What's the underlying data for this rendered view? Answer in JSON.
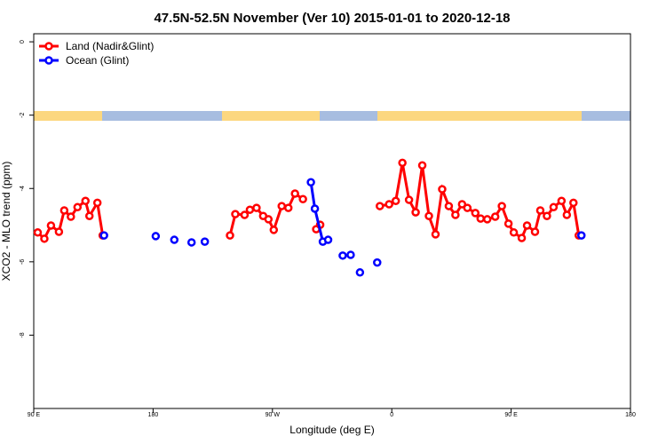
{
  "chart_data": {
    "type": "line",
    "title": "47.5N-52.5N November (Ver 10)   2015-01-01 to 2020-12-18",
    "x_label": "Longitude (deg E)",
    "y_label": "XCO2 - MLO trend (ppm)",
    "xlim": [
      90,
      540
    ],
    "ylim": [
      -10,
      0.22
    ],
    "xticks": [
      {
        "value": 90,
        "label": "90 E"
      },
      180,
      {
        "value": 270,
        "label": "90 W"
      },
      {
        "value": 360,
        "label": "0"
      },
      {
        "value": 450,
        "label": "90 E"
      },
      {
        "value": 540,
        "label": "180"
      }
    ],
    "yticks": [
      0,
      -2,
      -4,
      -6,
      -8
    ],
    "legend": "top-left",
    "series": [
      {
        "name": "Land (Nadir&Glint)",
        "color": "#ff0000",
        "x": [
          93,
          98,
          103,
          109,
          113,
          118,
          123,
          129,
          132,
          138,
          142,
          null,
          238,
          242,
          249,
          253,
          258,
          263,
          267,
          271,
          277,
          282,
          287,
          293,
          null,
          303,
          306,
          null,
          351,
          358,
          363,
          368,
          373,
          378,
          383,
          388,
          393,
          398,
          403,
          408,
          413,
          417,
          423,
          427,
          432,
          438,
          443,
          448,
          452,
          458,
          462,
          468,
          472,
          477,
          482,
          488,
          492,
          497,
          501
        ],
        "values": [
          -5.2,
          -5.37,
          -5.01,
          -5.18,
          -4.6,
          -4.77,
          -4.51,
          -4.34,
          -4.75,
          -4.39,
          -5.28,
          null,
          -5.28,
          -4.7,
          -4.72,
          -4.58,
          -4.53,
          -4.75,
          -4.84,
          -5.13,
          -4.48,
          -4.53,
          -4.14,
          -4.29,
          null,
          -5.11,
          -4.99,
          null,
          -4.48,
          -4.43,
          -4.34,
          -3.3,
          -4.31,
          -4.65,
          -3.37,
          -4.75,
          -5.25,
          -4.02,
          -4.48,
          -4.72,
          -4.43,
          -4.53,
          -4.67,
          -4.82,
          -4.84,
          -4.77,
          -4.48,
          -4.96,
          -5.2,
          -5.35,
          -5.01,
          -5.18,
          -4.6,
          -4.75,
          -4.51,
          -4.34,
          -4.72,
          -4.39,
          -5.28
        ]
      },
      {
        "name": "Ocean (Glint)",
        "color": "#0000ff",
        "x": [
          143,
          null,
          182,
          null,
          196,
          null,
          209,
          null,
          219,
          null,
          299,
          302,
          308,
          312,
          null,
          323,
          null,
          329,
          null,
          336,
          null,
          349,
          null,
          503
        ],
        "values": [
          -5.28,
          null,
          -5.3,
          null,
          -5.4,
          null,
          -5.47,
          null,
          -5.45,
          null,
          -3.83,
          -4.55,
          -5.45,
          -5.4,
          null,
          -5.83,
          null,
          -5.81,
          null,
          -6.29,
          null,
          -6.02,
          null,
          -5.28
        ]
      }
    ]
  }
}
